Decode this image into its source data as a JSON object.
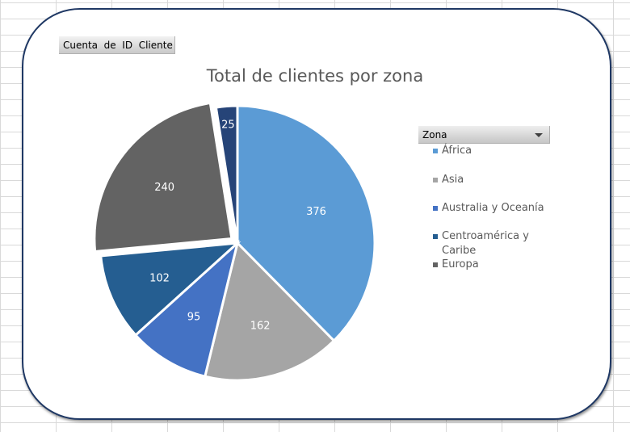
{
  "field_button": {
    "label": "Cuenta  de  ID  Cliente"
  },
  "legend": {
    "header": "Zona"
  },
  "chart_data": {
    "type": "pie",
    "title": "Total de clientes por zona",
    "categories": [
      "África",
      "Asia",
      "Australia y Oceanía",
      "Centroamérica y Caribe",
      "Europa",
      ""
    ],
    "values": [
      376,
      162,
      95,
      102,
      240,
      25
    ],
    "colors": [
      "#5b9bd5",
      "#a5a5a5",
      "#4472c4",
      "#255e91",
      "#636363",
      "#264478"
    ],
    "exploded_index": 4,
    "legend_position": "right"
  }
}
